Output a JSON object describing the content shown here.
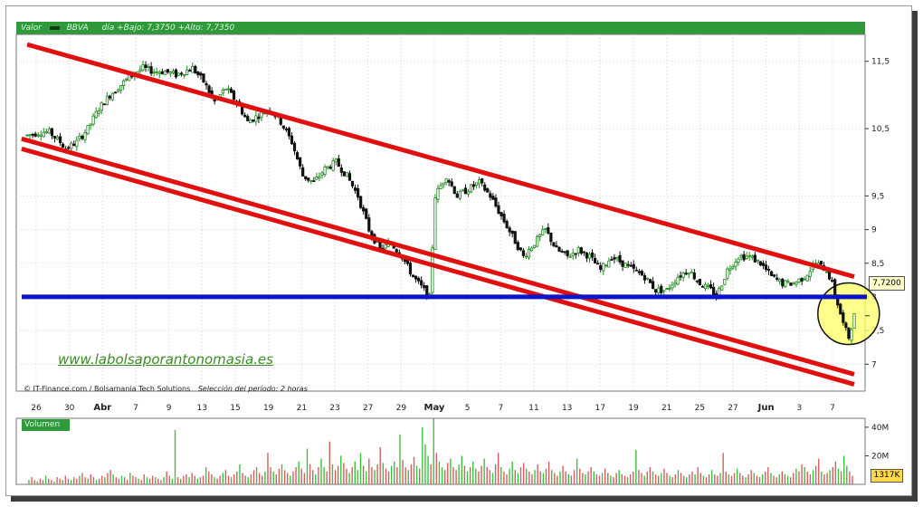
{
  "header": {
    "valor_label": "Valor",
    "symbol": "BBVA",
    "stats": "día +Bajo: 7,3750 +Alto: 7,7350"
  },
  "credits": {
    "source": "© IT-Finance.com / Bolsamania Tech Solutions",
    "selection": "Selección del período: 2 horas"
  },
  "watermark": "www.labolsaporantonomasia.es",
  "last_price_label": "7,7200",
  "volume_panel": {
    "title": "Volumen",
    "current_label": "1317K",
    "y_ticks": [
      "40M",
      "20M"
    ]
  },
  "colors": {
    "up": "#1e8a1e",
    "down": "#111111",
    "channel": "#e01010",
    "support": "#0a14c8",
    "highlight": "#ffff66",
    "vol_up": "#3fbf3f",
    "vol_down": "#d06060"
  },
  "chart_data": [
    {
      "type": "candlestick",
      "title": "BBVA",
      "ylim": [
        6.6,
        11.9
      ],
      "y_ticks": [
        "11,5",
        "10,5",
        "9,5",
        "9",
        "8,5",
        "8",
        "7,5",
        "7"
      ],
      "x_tick_labels": [
        "26",
        "30",
        "Abr",
        "7",
        "9",
        "13",
        "15",
        "19",
        "21",
        "23",
        "27",
        "29",
        "May",
        "5",
        "7",
        "11",
        "13",
        "17",
        "19",
        "21",
        "25",
        "27",
        "Jun",
        "3",
        "7"
      ],
      "path_points": [
        [
          0,
          10.4
        ],
        [
          5,
          10.45
        ],
        [
          8,
          10.45
        ],
        [
          12,
          10.3
        ],
        [
          14,
          10.2
        ],
        [
          18,
          10.3
        ],
        [
          22,
          10.5
        ],
        [
          26,
          10.8
        ],
        [
          30,
          11.0
        ],
        [
          34,
          11.15
        ],
        [
          38,
          11.3
        ],
        [
          42,
          11.4
        ],
        [
          46,
          11.35
        ],
        [
          50,
          11.35
        ],
        [
          54,
          11.3
        ],
        [
          60,
          11.4
        ],
        [
          64,
          11.2
        ],
        [
          68,
          10.9
        ],
        [
          72,
          11.1
        ],
        [
          76,
          10.9
        ],
        [
          80,
          10.6
        ],
        [
          84,
          10.7
        ],
        [
          88,
          10.8
        ],
        [
          92,
          10.6
        ],
        [
          96,
          10.3
        ],
        [
          100,
          9.8
        ],
        [
          104,
          9.7
        ],
        [
          108,
          9.9
        ],
        [
          112,
          10.0
        ],
        [
          116,
          9.8
        ],
        [
          120,
          9.5
        ],
        [
          124,
          9.0
        ],
        [
          128,
          8.7
        ],
        [
          132,
          8.8
        ],
        [
          136,
          8.6
        ],
        [
          140,
          8.3
        ],
        [
          144,
          8.1
        ],
        [
          146,
          8.0
        ],
        [
          148,
          9.5
        ],
        [
          152,
          9.8
        ],
        [
          156,
          9.5
        ],
        [
          160,
          9.6
        ],
        [
          164,
          9.7
        ],
        [
          168,
          9.5
        ],
        [
          172,
          9.2
        ],
        [
          176,
          8.9
        ],
        [
          180,
          8.6
        ],
        [
          184,
          8.8
        ],
        [
          188,
          9.0
        ],
        [
          192,
          8.7
        ],
        [
          196,
          8.6
        ],
        [
          200,
          8.7
        ],
        [
          204,
          8.6
        ],
        [
          208,
          8.4
        ],
        [
          212,
          8.6
        ],
        [
          216,
          8.5
        ],
        [
          220,
          8.4
        ],
        [
          224,
          8.3
        ],
        [
          228,
          8.1
        ],
        [
          232,
          8.1
        ],
        [
          236,
          8.3
        ],
        [
          240,
          8.4
        ],
        [
          244,
          8.2
        ],
        [
          248,
          8.1
        ],
        [
          250,
          8.0
        ],
        [
          254,
          8.4
        ],
        [
          258,
          8.6
        ],
        [
          262,
          8.6
        ],
        [
          266,
          8.5
        ],
        [
          270,
          8.3
        ],
        [
          274,
          8.2
        ],
        [
          278,
          8.2
        ],
        [
          282,
          8.3
        ],
        [
          286,
          8.5
        ],
        [
          290,
          8.4
        ],
        [
          292,
          8.2
        ],
        [
          294,
          7.9
        ],
        [
          296,
          7.6
        ],
        [
          298,
          7.4
        ],
        [
          300,
          7.72
        ]
      ],
      "support_level": 8.0,
      "upper_channel": [
        [
          0,
          11.75
        ],
        [
          300,
          8.3
        ]
      ],
      "lower_channel_a": [
        [
          -2,
          10.35
        ],
        [
          300,
          6.85
        ]
      ],
      "lower_channel_b": [
        [
          -2,
          10.2
        ],
        [
          300,
          6.7
        ]
      ],
      "highlight": {
        "x": 296,
        "y": 7.75
      }
    },
    {
      "type": "bar",
      "title": "Volumen",
      "ylim": [
        0,
        45000000
      ],
      "y_ticks": [
        "40M",
        "20M"
      ],
      "values": [
        3,
        5,
        3,
        2,
        4,
        3,
        6,
        4,
        3,
        2,
        5,
        4,
        3,
        6,
        4,
        3,
        5,
        4,
        6,
        8,
        5,
        4,
        7,
        5,
        3,
        4,
        6,
        5,
        8,
        10,
        7,
        5,
        4,
        6,
        5,
        3,
        8,
        6,
        5,
        4,
        3,
        7,
        5,
        4,
        6,
        5,
        4,
        3,
        5,
        9,
        6,
        4,
        38,
        5,
        4,
        6,
        7,
        5,
        8,
        6,
        4,
        5,
        6,
        12,
        9,
        7,
        5,
        4,
        6,
        8,
        10,
        6,
        5,
        7,
        9,
        14,
        8,
        6,
        5,
        7,
        10,
        12,
        8,
        6,
        9,
        22,
        12,
        9,
        7,
        11,
        14,
        10,
        8,
        6,
        9,
        12,
        16,
        11,
        8,
        25,
        14,
        10,
        7,
        12,
        18,
        12,
        9,
        30,
        14,
        10,
        13,
        20,
        15,
        11,
        8,
        12,
        16,
        10,
        22,
        13,
        9,
        18,
        12,
        10,
        14,
        26,
        15,
        11,
        9,
        13,
        16,
        12,
        35,
        17,
        12,
        10,
        14,
        19,
        13,
        11,
        40,
        28,
        20,
        14,
        46,
        22,
        16,
        12,
        10,
        15,
        18,
        12,
        10,
        14,
        20,
        13,
        9,
        12,
        16,
        11,
        9,
        13,
        18,
        12,
        10,
        8,
        14,
        22,
        12,
        9,
        7,
        11,
        16,
        10,
        8,
        12,
        15,
        11,
        9,
        7,
        10,
        14,
        9,
        8,
        11,
        16,
        10,
        8,
        6,
        9,
        13,
        9,
        7,
        6,
        10,
        18,
        11,
        8,
        7,
        9,
        12,
        9,
        7,
        6,
        8,
        11,
        8,
        6,
        5,
        8,
        10,
        7,
        6,
        5,
        7,
        9,
        24,
        10,
        8,
        6,
        9,
        12,
        9,
        7,
        6,
        8,
        11,
        8,
        6,
        5,
        7,
        10,
        8,
        6,
        5,
        7,
        9,
        7,
        12,
        8,
        6,
        5,
        7,
        10,
        7,
        6,
        8,
        22,
        9,
        7,
        6,
        8,
        11,
        8,
        6,
        5,
        7,
        10,
        8,
        6,
        5,
        7,
        9,
        12,
        8,
        6,
        5,
        7,
        9,
        7,
        6,
        5,
        8,
        11,
        9,
        14,
        12,
        9,
        7,
        10,
        13,
        18,
        9,
        7,
        8,
        10,
        12,
        16,
        11,
        9,
        20,
        13,
        9,
        6
      ]
    }
  ]
}
